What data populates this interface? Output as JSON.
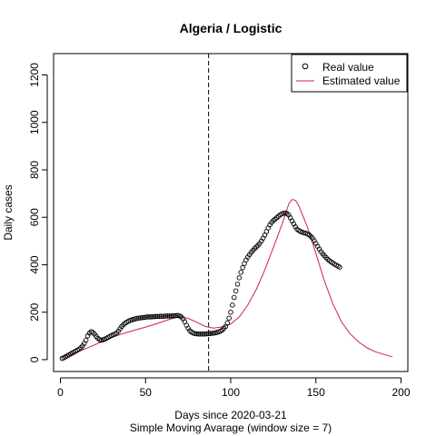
{
  "chart_data": {
    "type": "scatter",
    "title": "Algeria / Logistic",
    "xlabel": "Days since 2020-03-21",
    "xlabel2": "Simple Moving Avarage (window size = 7)",
    "ylabel": "Daily cases",
    "xlim": [
      -4,
      204
    ],
    "ylim": [
      -50,
      1290
    ],
    "xticks": [
      0,
      50,
      100,
      150,
      200
    ],
    "yticks": [
      0,
      200,
      400,
      600,
      800,
      1000,
      1200
    ],
    "vline": {
      "x": 87,
      "style": "dashed"
    },
    "legend": {
      "position": "top-right",
      "entries": [
        "Real value",
        "Estimated value"
      ]
    },
    "series": [
      {
        "name": "Real value",
        "style": "open-circle",
        "color": "#000000",
        "x": [
          1,
          2,
          3,
          4,
          5,
          6,
          7,
          8,
          9,
          10,
          11,
          12,
          13,
          14,
          15,
          16,
          17,
          18,
          19,
          20,
          21,
          22,
          23,
          24,
          25,
          26,
          27,
          28,
          29,
          30,
          31,
          32,
          33,
          34,
          35,
          36,
          37,
          38,
          39,
          40,
          41,
          42,
          43,
          44,
          45,
          46,
          47,
          48,
          49,
          50,
          51,
          52,
          53,
          54,
          55,
          56,
          57,
          58,
          59,
          60,
          61,
          62,
          63,
          64,
          65,
          66,
          67,
          68,
          69,
          70,
          71,
          72,
          73,
          74,
          75,
          76,
          77,
          78,
          79,
          80,
          81,
          82,
          83,
          84,
          85,
          86,
          87,
          88,
          89,
          90,
          91,
          92,
          93,
          94,
          95,
          96,
          97,
          98,
          99,
          100,
          101,
          102,
          103,
          104,
          105,
          106,
          107,
          108,
          109,
          110,
          111,
          112,
          113,
          114,
          115,
          116,
          117,
          118,
          119,
          120,
          121,
          122,
          123,
          124,
          125,
          126,
          127,
          128,
          129,
          130,
          131,
          132,
          133,
          134,
          135,
          136,
          137,
          138,
          139,
          140,
          141,
          142,
          143,
          144,
          145,
          146,
          147,
          148,
          149,
          150,
          151,
          152,
          153,
          154,
          155,
          156,
          157,
          158,
          159,
          160,
          161,
          162,
          163,
          164
        ],
        "y": [
          5,
          8,
          12,
          16,
          20,
          24,
          28,
          32,
          36,
          40,
          44,
          50,
          58,
          68,
          82,
          100,
          112,
          118,
          115,
          108,
          98,
          90,
          84,
          82,
          84,
          86,
          90,
          94,
          98,
          102,
          105,
          108,
          112,
          120,
          130,
          140,
          148,
          154,
          158,
          162,
          166,
          168,
          170,
          172,
          174,
          175,
          176,
          177,
          178,
          179,
          180,
          180,
          180,
          181,
          181,
          182,
          182,
          182,
          183,
          183,
          183,
          184,
          184,
          184,
          184,
          185,
          185,
          186,
          186,
          184,
          180,
          172,
          160,
          145,
          132,
          122,
          116,
          112,
          110,
          109,
          108,
          108,
          108,
          108,
          108,
          109,
          110,
          110,
          111,
          112,
          113,
          115,
          117,
          120,
          125,
          132,
          140,
          155,
          175,
          200,
          230,
          262,
          290,
          318,
          345,
          368,
          388,
          405,
          420,
          432,
          442,
          452,
          460,
          468,
          475,
          482,
          490,
          500,
          512,
          525,
          540,
          555,
          568,
          578,
          586,
          592,
          598,
          604,
          610,
          614,
          617,
          618,
          616,
          610,
          598,
          585,
          572,
          560,
          550,
          544,
          540,
          537,
          535,
          533,
          530,
          526,
          520,
          512,
          502,
          490,
          478,
          466,
          455,
          446,
          438,
          430,
          423,
          417,
          412,
          407,
          402,
          398,
          394,
          390
        ]
      },
      {
        "name": "Estimated value",
        "style": "line",
        "color": "#cc2255",
        "x": [
          0,
          5,
          10,
          15,
          20,
          25,
          30,
          35,
          40,
          45,
          50,
          55,
          60,
          65,
          70,
          75,
          80,
          85,
          90,
          95,
          100,
          105,
          110,
          115,
          120,
          125,
          130,
          132,
          134,
          136,
          138,
          140,
          145,
          150,
          155,
          160,
          165,
          170,
          175,
          180,
          185,
          190,
          195
        ],
        "y": [
          10,
          20,
          33,
          47,
          62,
          78,
          93,
          106,
          117,
          127,
          137,
          148,
          160,
          172,
          181,
          174,
          158,
          140,
          133,
          138,
          150,
          180,
          230,
          296,
          378,
          472,
          568,
          610,
          655,
          675,
          672,
          648,
          560,
          448,
          332,
          235,
          160,
          110,
          75,
          50,
          33,
          22,
          12
        ]
      }
    ]
  }
}
